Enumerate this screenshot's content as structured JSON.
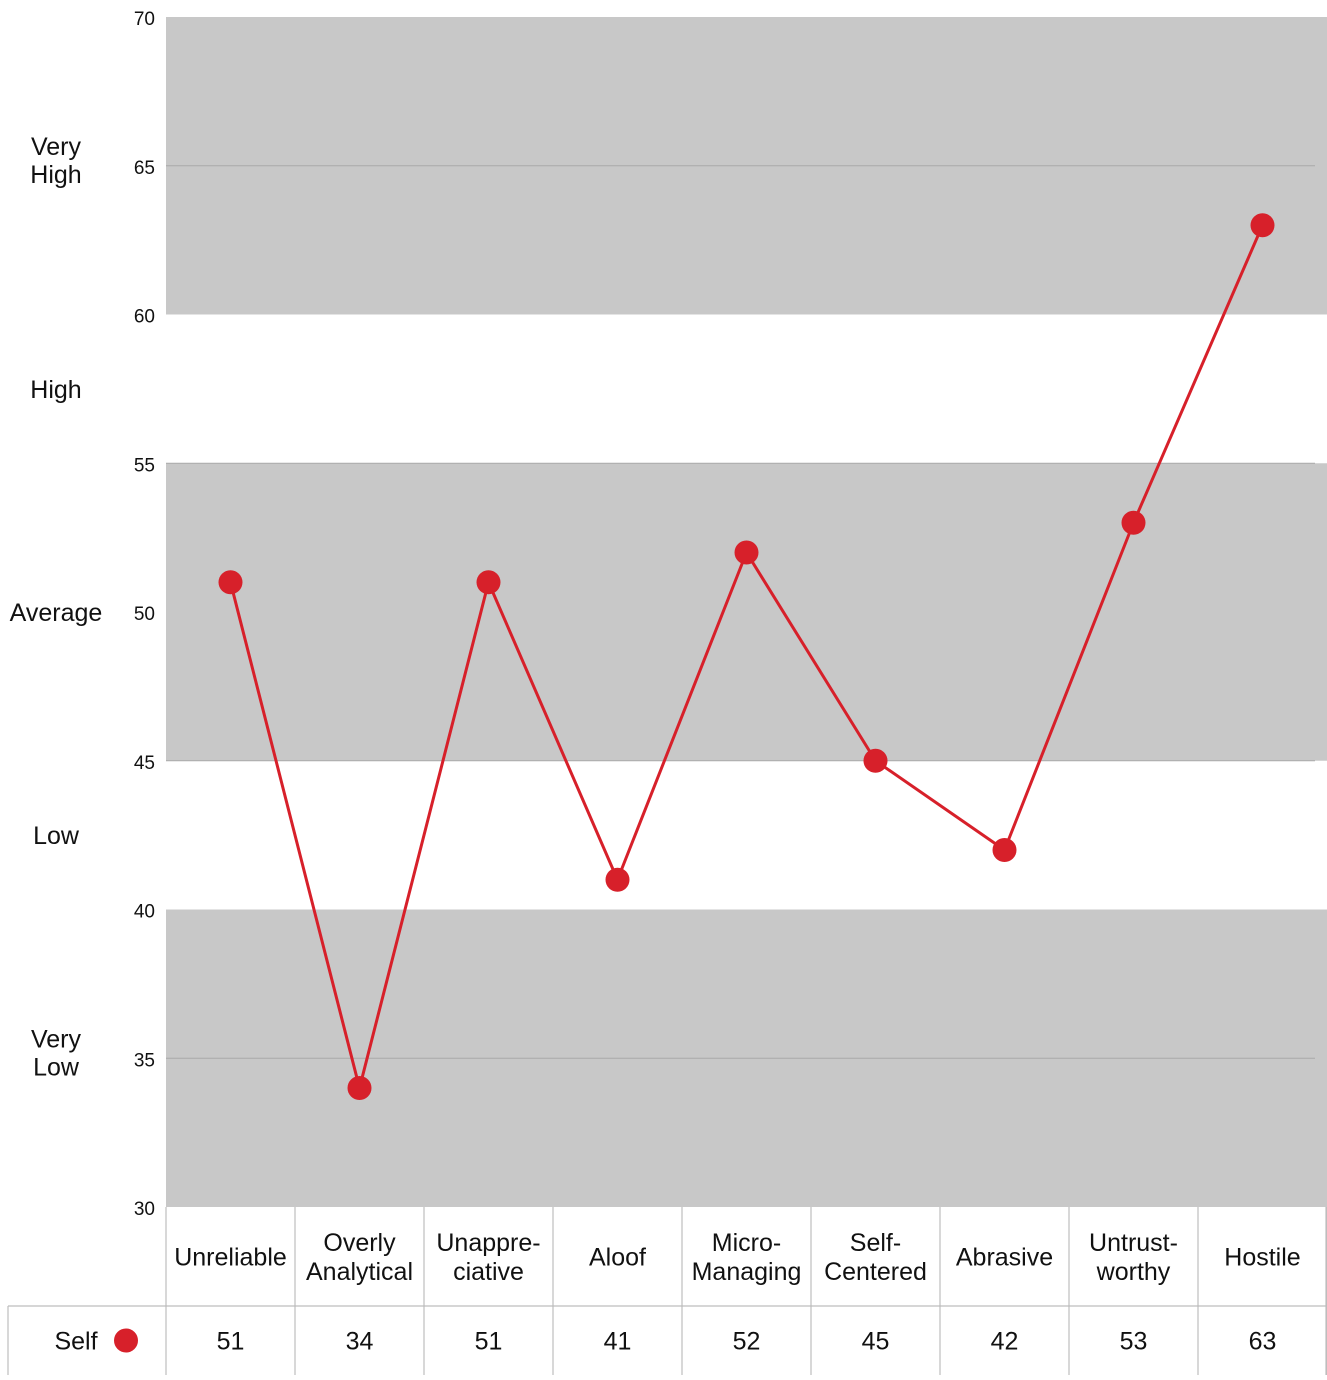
{
  "chart_data": {
    "type": "line",
    "title": "",
    "xlabel": "",
    "ylabel": "",
    "ylim": [
      30,
      70
    ],
    "yticks": [
      30,
      35,
      40,
      45,
      50,
      55,
      60,
      65,
      70
    ],
    "categories": [
      [
        "Unreliable"
      ],
      [
        "Overly",
        "Analytical"
      ],
      [
        "Unappre-",
        "ciative"
      ],
      [
        "Aloof"
      ],
      [
        "Micro-",
        "Managing"
      ],
      [
        "Self-",
        "Centered"
      ],
      [
        "Abrasive"
      ],
      [
        "Untrust-",
        "worthy"
      ],
      [
        "Hostile"
      ]
    ],
    "series": [
      {
        "name": "Self",
        "values": [
          51,
          34,
          51,
          41,
          52,
          45,
          42,
          53,
          63
        ],
        "color": "#d7202a"
      }
    ],
    "bands": [
      {
        "label": [
          "Very",
          "High"
        ],
        "from": 60,
        "to": 70,
        "shaded": true
      },
      {
        "label": [
          "High"
        ],
        "from": 55,
        "to": 60,
        "shaded": false
      },
      {
        "label": [
          "Average"
        ],
        "from": 45,
        "to": 55,
        "shaded": true
      },
      {
        "label": [
          "Low"
        ],
        "from": 40,
        "to": 45,
        "shaded": false
      },
      {
        "label": [
          "Very",
          "Low"
        ],
        "from": 30,
        "to": 40,
        "shaded": true
      }
    ],
    "grid": true,
    "legend": "table-row",
    "colors": {
      "band_shade": "#c8c8c8",
      "grid": "#a9a9a9",
      "line": "#d7202a",
      "table_border": "#bdbdbd"
    }
  }
}
